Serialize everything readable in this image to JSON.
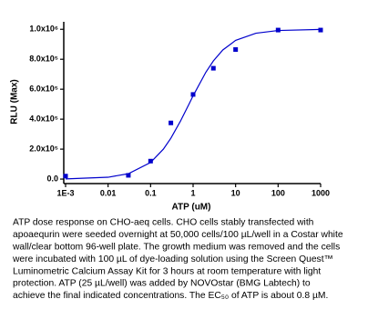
{
  "chart_data": {
    "type": "scatter",
    "xlabel": "ATP (uM)",
    "ylabel": "RLU (Max)",
    "xscale": "log",
    "xlim": [
      0.001,
      1000
    ],
    "xticks": [
      {
        "value": 0.001,
        "label": "1E-3"
      },
      0.01,
      0.1,
      1,
      10,
      100,
      1000
    ],
    "ylim": [
      -30000,
      1050000
    ],
    "yticks": [
      {
        "value": 0,
        "label": "0.0"
      },
      {
        "value": 200000,
        "label": "2.0x10⁵"
      },
      {
        "value": 400000,
        "label": "4.0x10⁵"
      },
      {
        "value": 600000,
        "label": "6.0x10⁵"
      },
      {
        "value": 800000,
        "label": "8.0x10⁵"
      },
      {
        "value": 1000000,
        "label": "1.0x10⁶"
      }
    ],
    "series": [
      {
        "mode": "markers",
        "color": "#0000cc",
        "x": [
          0.001,
          0.03,
          0.1,
          0.3,
          1,
          3,
          10,
          100,
          1000
        ],
        "values": [
          20000,
          25000,
          120000,
          375000,
          565000,
          740000,
          865000,
          995000,
          995000
        ]
      },
      {
        "mode": "line",
        "color": "#0000cc",
        "x": [
          0.001,
          0.01,
          0.03,
          0.1,
          0.2,
          0.3,
          0.5,
          0.8,
          1,
          2,
          3,
          5,
          10,
          30,
          100,
          1000
        ],
        "values": [
          1250,
          12300,
          36000,
          111000,
          200000,
          273000,
          385000,
          500000,
          556000,
          714000,
          789000,
          862000,
          926000,
          974000,
          992000,
          999000
        ]
      }
    ]
  },
  "caption": [
    "ATP dose response on CHO-aeq cells. CHO cells stably transfected with",
    "apoaequrin were seeded overnight at 50,000 cells/100 µL/well in a Costar white",
    "wall/clear bottom 96-well plate. The growth medium was removed and the cells",
    "were incubated with 100 µL of dye-loading solution using the Screen Quest™",
    "Luminometric Calcium Assay Kit for 3 hours at room temperature with light",
    "protection. ATP (25 µL/well) was added by NOVOstar (BMG Labtech) to",
    "achieve the final indicated concentrations. The EC₅₀ of ATP is about 0.8 µM."
  ]
}
